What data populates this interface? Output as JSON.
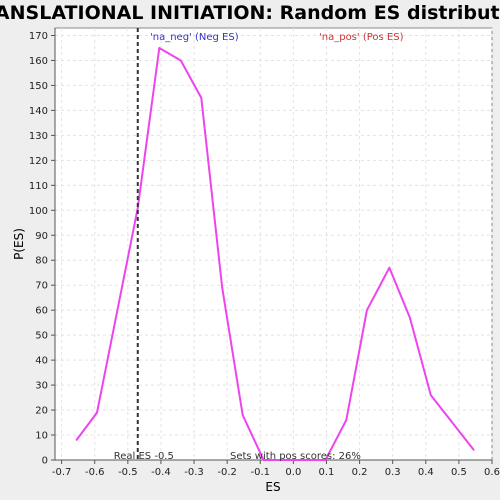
{
  "chart_data": {
    "type": "line",
    "title": "TRANSLATIONAL INITIATION: Random ES distribution",
    "xlabel": "ES",
    "ylabel": "P(ES)",
    "xlim": [
      -0.72,
      0.6
    ],
    "ylim": [
      0,
      173
    ],
    "x_ticks": [
      -0.7,
      -0.6,
      -0.5,
      -0.4,
      -0.3,
      -0.2,
      -0.1,
      0.0,
      0.1,
      0.2,
      0.3,
      0.4,
      0.5,
      0.6
    ],
    "x_tick_labels": [
      "-0.7",
      "-0.6",
      "-0.5",
      "-0.4",
      "-0.3",
      "-0.2",
      "-0.1",
      "0.0",
      "0.1",
      "0.2",
      "0.3",
      "0.4",
      "0.5",
      "0.6"
    ],
    "y_ticks": [
      0,
      10,
      20,
      30,
      40,
      50,
      60,
      70,
      80,
      90,
      100,
      110,
      120,
      130,
      140,
      150,
      160,
      170
    ],
    "grid": true,
    "series": [
      {
        "color": "#ee44ee",
        "x": [
          -0.655,
          -0.593,
          -0.47,
          -0.405,
          -0.34,
          -0.278,
          -0.215,
          -0.153,
          -0.09,
          0.097,
          0.16,
          0.222,
          0.29,
          0.352,
          0.415,
          0.545
        ],
        "y": [
          8,
          19,
          101,
          165,
          160,
          145,
          69,
          18,
          0,
          0,
          16,
          60,
          77,
          57,
          26,
          4
        ]
      }
    ],
    "real_es": {
      "value": -0.47,
      "label": "Real ES -0.5"
    },
    "annotations": {
      "neg": {
        "text": "'na_neg' (Neg ES)",
        "color": "#3333cc"
      },
      "pos": {
        "text": "'na_pos' (Pos ES)",
        "color": "#cc3333"
      },
      "pos_scores": {
        "text": "Sets with pos scores: 26%",
        "color": "#333333"
      }
    }
  }
}
